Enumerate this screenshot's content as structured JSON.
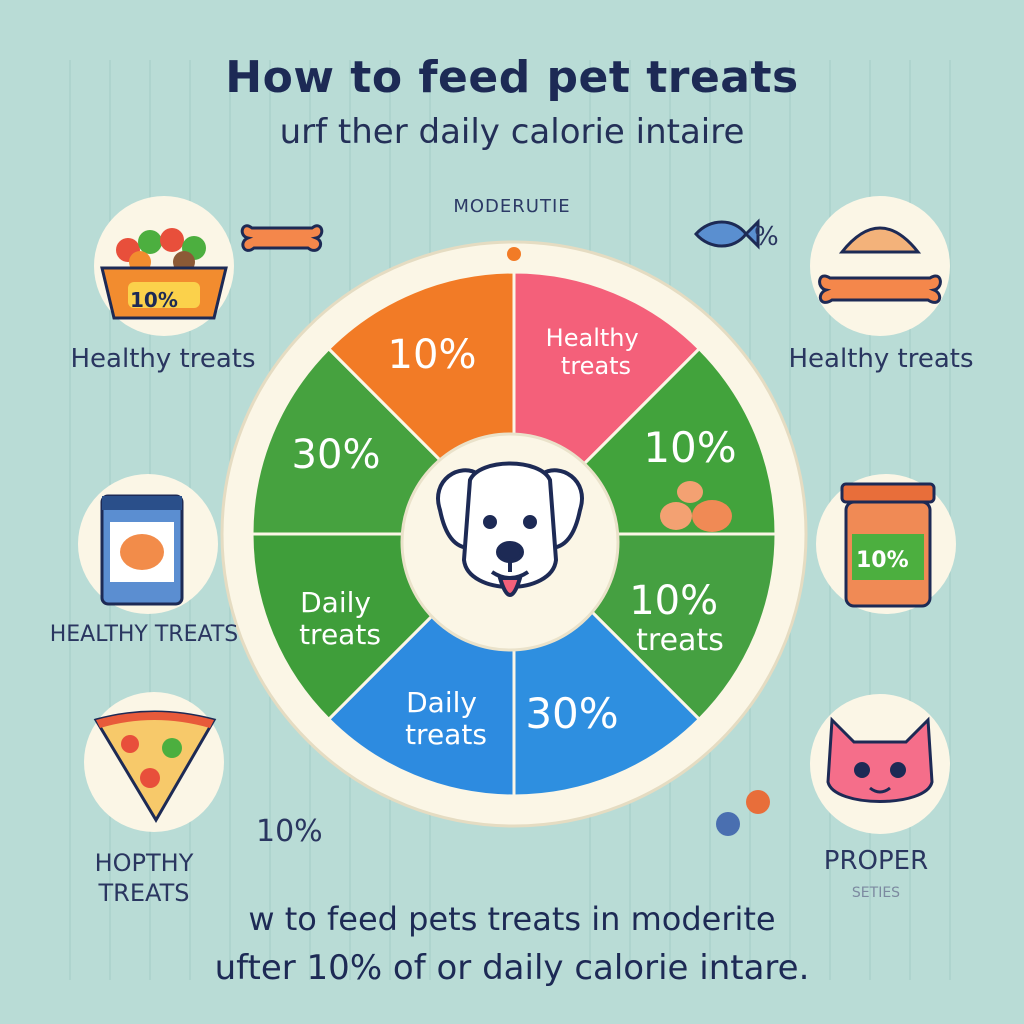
{
  "header": {
    "title": "How to feed pet treats",
    "subtitle": "urf ther daily calorie intaire",
    "tag": "MODERUTIE"
  },
  "wheel": {
    "segments": [
      {
        "label": "10%",
        "color": "#f4607a"
      },
      {
        "label": "Healthy treats",
        "color": "#42a33c"
      },
      {
        "label": "10%",
        "color": "#45a041"
      },
      {
        "label": "10% treats",
        "color": "#2e8fe0"
      },
      {
        "label": "30%",
        "color": "#2d8be0"
      },
      {
        "label": "Daily treats",
        "color": "#3f9e3a"
      },
      {
        "label": "Daily treats",
        "color": "#46a23f"
      },
      {
        "label": "30%",
        "color": "#f27b26"
      }
    ],
    "center_icon": "dog-face-icon"
  },
  "left_items": [
    {
      "label": "Healthy treats",
      "icon": "food-bowl-icon",
      "badge": "10%"
    },
    {
      "label": "HEALTHY TREATS",
      "icon": "treat-bag-icon"
    },
    {
      "label": "HOPTHY TREATS",
      "icon": "pizza-slice-icon",
      "pct": "10%"
    }
  ],
  "right_items": [
    {
      "label": "Healthy treats",
      "icon": "bone-treat-icon"
    },
    {
      "label": "",
      "icon": "treat-jar-icon",
      "badge": "10%"
    },
    {
      "label": "PROPER",
      "sub": "SETIES",
      "icon": "cat-face-icon"
    }
  ],
  "top_icons": {
    "left": "bone-icon",
    "right": "fish-treat-icon",
    "right_pct": "%"
  },
  "footer": {
    "line1": "w to feed pets treats in moderite",
    "line2": "ufter 10% of or daily calorie intare."
  },
  "colors": {
    "background": "#b9dcd6",
    "text": "#1d2a55",
    "pink": "#f4607a",
    "green": "#42a33c",
    "blue": "#2e8fe0",
    "orange": "#f27b26"
  }
}
